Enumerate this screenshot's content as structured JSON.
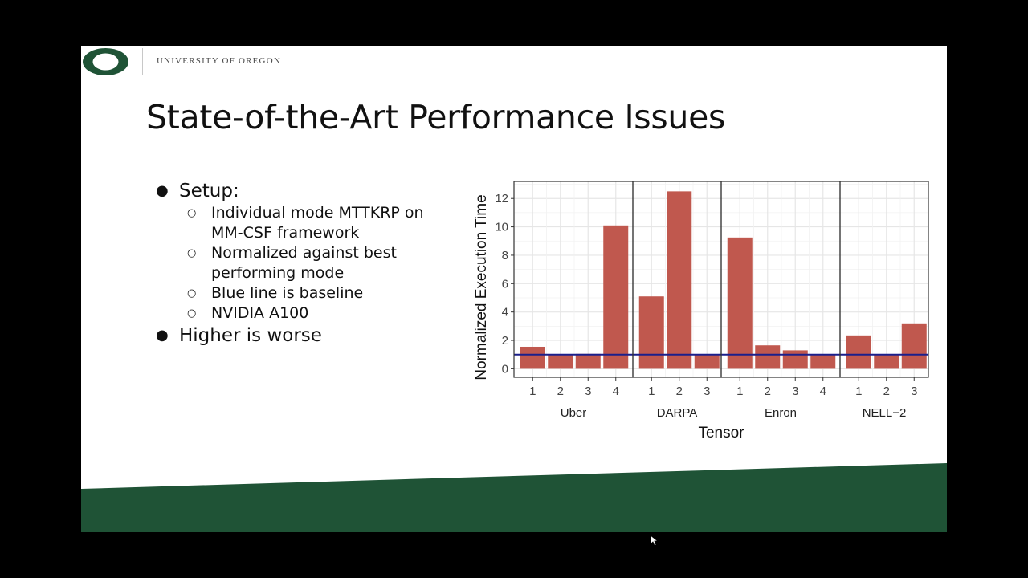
{
  "header": {
    "university": "UNIVERSITY OF OREGON"
  },
  "slide": {
    "title": "State-of-the-Art Performance Issues"
  },
  "bullets": [
    {
      "text": "Setup:",
      "subitems": [
        "Individual mode MTTKRP on MM-CSF framework",
        "Normalized against best performing mode",
        "Blue line is baseline",
        "NVIDIA A100"
      ]
    },
    {
      "text": "Higher is worse",
      "subitems": []
    }
  ],
  "colors": {
    "brand_green": "#1f5336",
    "bar": "#c0584e",
    "baseline": "#1a1f8c"
  },
  "chart_data": {
    "type": "bar",
    "xlabel": "Tensor",
    "ylabel": "Normalized Execution Time",
    "ylim": [
      -0.6,
      13.2
    ],
    "yticks": [
      0,
      2,
      4,
      6,
      8,
      10,
      12
    ],
    "grid": true,
    "baseline": 1,
    "facets": [
      {
        "name": "Uber",
        "categories": [
          "1",
          "2",
          "3",
          "4"
        ],
        "values": [
          1.55,
          1.0,
          1.05,
          10.1
        ]
      },
      {
        "name": "DARPA",
        "categories": [
          "1",
          "2",
          "3"
        ],
        "values": [
          5.1,
          12.5,
          1.0
        ]
      },
      {
        "name": "Enron",
        "categories": [
          "1",
          "2",
          "3",
          "4"
        ],
        "values": [
          9.25,
          1.65,
          1.3,
          1.0
        ]
      },
      {
        "name": "NELL−2",
        "categories": [
          "1",
          "2",
          "3"
        ],
        "values": [
          2.35,
          1.0,
          3.2
        ]
      }
    ]
  }
}
